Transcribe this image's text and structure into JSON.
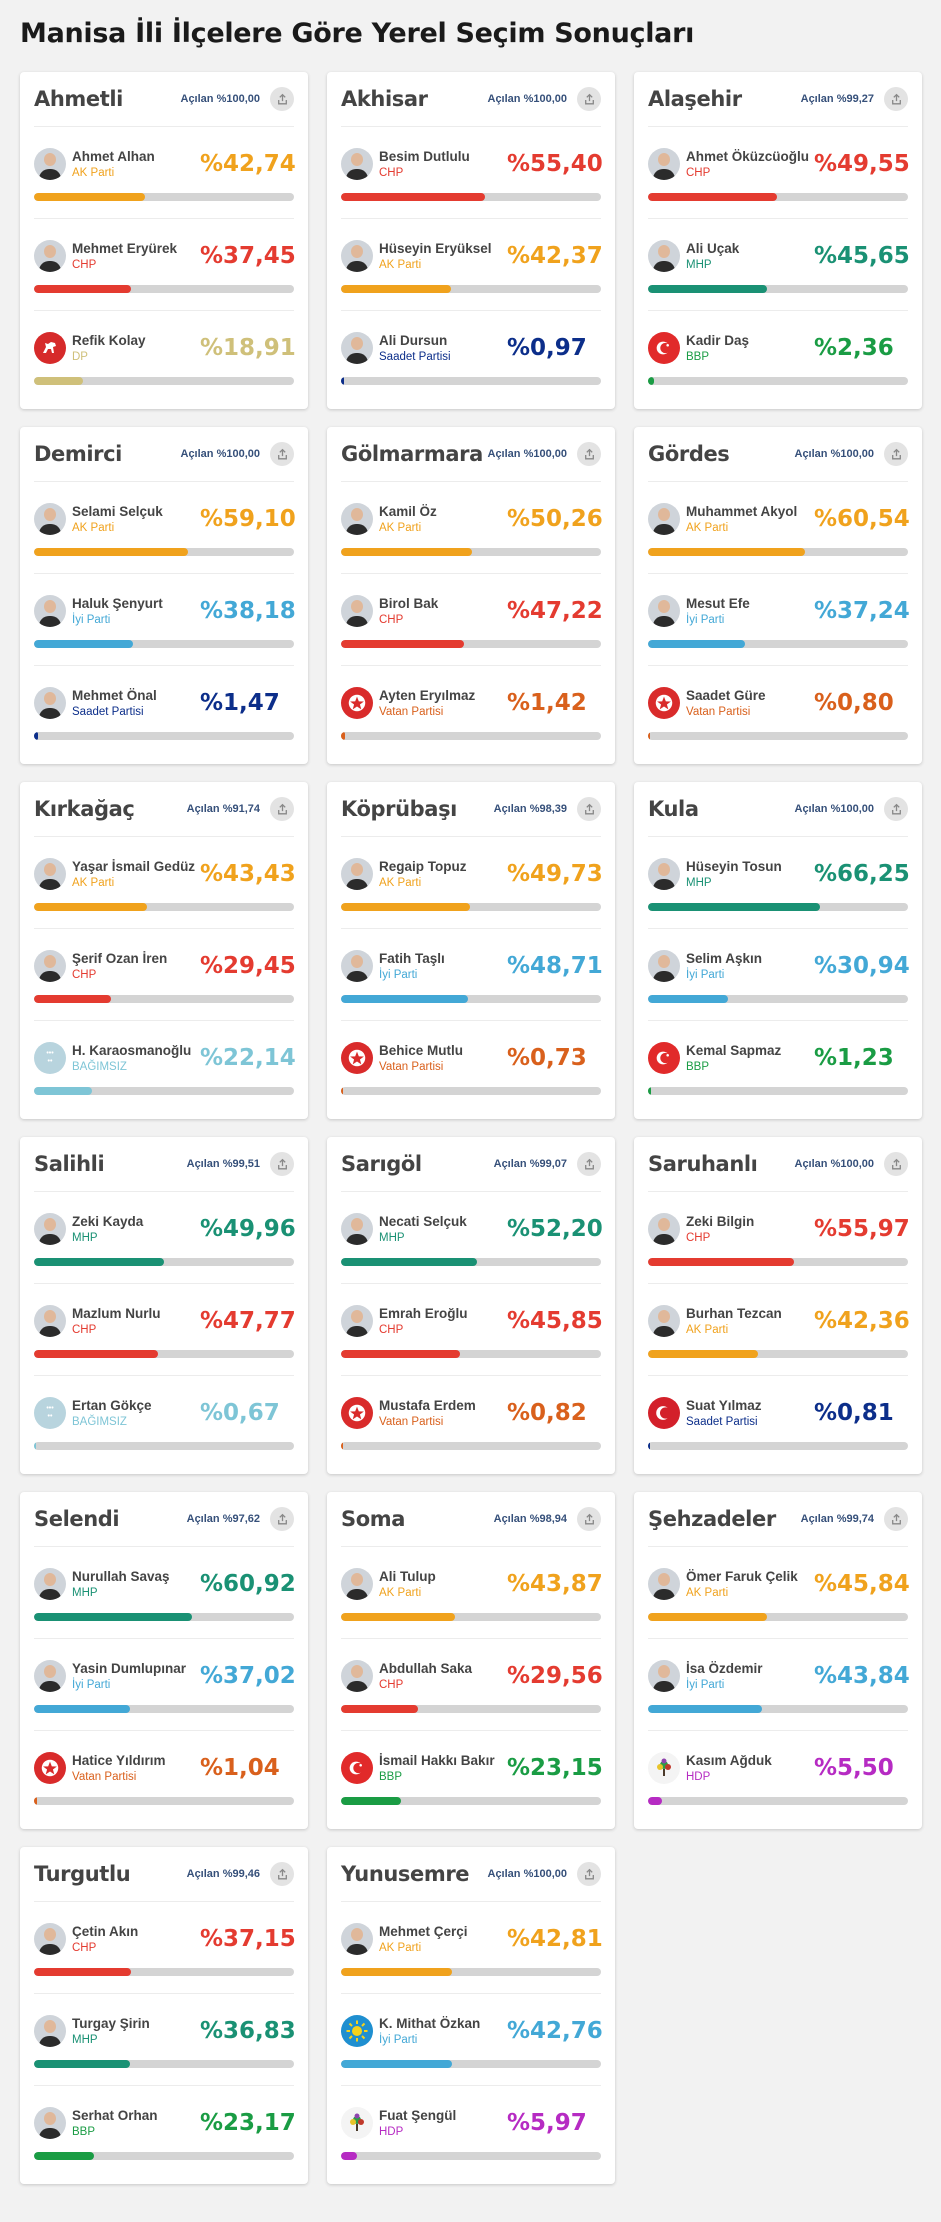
{
  "title": "Manisa İli İlçelere Göre Yerel Seçim Sonuçları",
  "colors": {
    "AK Parti": "#f0a21d",
    "CHP": "#e43b30",
    "MHP": "#1a9174",
    "DP": "#cfc07a",
    "İyi Parti": "#43a8d6",
    "Saadet Partisi": "#0c2e8a",
    "Vatan Partisi": "#d9601c",
    "BBP": "#1a9c44",
    "BAĞIMSIZ": "#7ec5d6",
    "HDP": "#b62bc3"
  },
  "districts": [
    {
      "name": "Ahmetli",
      "opened": "Açılan %100,00",
      "candidates": [
        {
          "name": "Ahmet Alhan",
          "party": "AK Parti",
          "pct": "%42,74",
          "value": 42.74,
          "avatar": "photo"
        },
        {
          "name": "Mehmet Eryürek",
          "party": "CHP",
          "pct": "%37,45",
          "value": 37.45,
          "avatar": "photo"
        },
        {
          "name": "Refik Kolay",
          "party": "DP",
          "pct": "%18,91",
          "value": 18.91,
          "avatar": "horse-logo-icon"
        }
      ]
    },
    {
      "name": "Akhisar",
      "opened": "Açılan %100,00",
      "candidates": [
        {
          "name": "Besim Dutlulu",
          "party": "CHP",
          "pct": "%55,40",
          "value": 55.4,
          "avatar": "photo"
        },
        {
          "name": "Hüseyin Eryüksel",
          "party": "AK Parti",
          "pct": "%42,37",
          "value": 42.37,
          "avatar": "photo"
        },
        {
          "name": "Ali Dursun",
          "party": "Saadet Partisi",
          "pct": "%0,97",
          "value": 0.97,
          "avatar": "photo"
        }
      ]
    },
    {
      "name": "Alaşehir",
      "opened": "Açılan %99,27",
      "candidates": [
        {
          "name": "Ahmet Öküzcüoğlu",
          "party": "CHP",
          "pct": "%49,55",
          "value": 49.55,
          "avatar": "photo"
        },
        {
          "name": "Ali Uçak",
          "party": "MHP",
          "pct": "%45,65",
          "value": 45.65,
          "avatar": "photo"
        },
        {
          "name": "Kadir Daş",
          "party": "BBP",
          "pct": "%2,36",
          "value": 2.36,
          "avatar": "crescent-logo-icon"
        }
      ]
    },
    {
      "name": "Demirci",
      "opened": "Açılan %100,00",
      "candidates": [
        {
          "name": "Selami Selçuk",
          "party": "AK Parti",
          "pct": "%59,10",
          "value": 59.1,
          "avatar": "photo"
        },
        {
          "name": "Haluk Şenyurt",
          "party": "İyi Parti",
          "pct": "%38,18",
          "value": 38.18,
          "avatar": "photo"
        },
        {
          "name": "Mehmet Önal",
          "party": "Saadet Partisi",
          "pct": "%1,47",
          "value": 1.47,
          "avatar": "photo"
        }
      ]
    },
    {
      "name": "Gölmarmara",
      "opened": "Açılan %100,00",
      "candidates": [
        {
          "name": "Kamil Öz",
          "party": "AK Parti",
          "pct": "%50,26",
          "value": 50.26,
          "avatar": "photo"
        },
        {
          "name": "Birol Bak",
          "party": "CHP",
          "pct": "%47,22",
          "value": 47.22,
          "avatar": "photo"
        },
        {
          "name": "Ayten Eryılmaz",
          "party": "Vatan Partisi",
          "pct": "%1,42",
          "value": 1.42,
          "avatar": "star-logo-icon"
        }
      ]
    },
    {
      "name": "Gördes",
      "opened": "Açılan %100,00",
      "candidates": [
        {
          "name": "Muhammet Akyol",
          "party": "AK Parti",
          "pct": "%60,54",
          "value": 60.54,
          "avatar": "photo"
        },
        {
          "name": "Mesut Efe",
          "party": "İyi Parti",
          "pct": "%37,24",
          "value": 37.24,
          "avatar": "photo"
        },
        {
          "name": "Saadet Güre",
          "party": "Vatan Partisi",
          "pct": "%0,80",
          "value": 0.8,
          "avatar": "star-logo-icon"
        }
      ]
    },
    {
      "name": "Kırkağaç",
      "opened": "Açılan %91,74",
      "candidates": [
        {
          "name": "Yaşar İsmail Gedüz",
          "party": "AK Parti",
          "pct": "%43,43",
          "value": 43.43,
          "avatar": "photo"
        },
        {
          "name": "Şerif Ozan İren",
          "party": "CHP",
          "pct": "%29,45",
          "value": 29.45,
          "avatar": "photo"
        },
        {
          "name": "H. Karaosmanoğlu",
          "party": "BAĞIMSIZ",
          "pct": "%22,14",
          "value": 22.14,
          "avatar": "independent-logo-icon"
        }
      ]
    },
    {
      "name": "Köprübaşı",
      "opened": "Açılan %98,39",
      "candidates": [
        {
          "name": "Regaip Topuz",
          "party": "AK Parti",
          "pct": "%49,73",
          "value": 49.73,
          "avatar": "photo"
        },
        {
          "name": "Fatih Taşlı",
          "party": "İyi Parti",
          "pct": "%48,71",
          "value": 48.71,
          "avatar": "photo"
        },
        {
          "name": "Behice Mutlu",
          "party": "Vatan Partisi",
          "pct": "%0,73",
          "value": 0.73,
          "avatar": "star-logo-icon"
        }
      ]
    },
    {
      "name": "Kula",
      "opened": "Açılan %100,00",
      "candidates": [
        {
          "name": "Hüseyin Tosun",
          "party": "MHP",
          "pct": "%66,25",
          "value": 66.25,
          "avatar": "photo"
        },
        {
          "name": "Selim Aşkın",
          "party": "İyi Parti",
          "pct": "%30,94",
          "value": 30.94,
          "avatar": "photo"
        },
        {
          "name": "Kemal Sapmaz",
          "party": "BBP",
          "pct": "%1,23",
          "value": 1.23,
          "avatar": "crescent-logo-icon"
        }
      ]
    },
    {
      "name": "Salihli",
      "opened": "Açılan %99,51",
      "candidates": [
        {
          "name": "Zeki Kayda",
          "party": "MHP",
          "pct": "%49,96",
          "value": 49.96,
          "avatar": "photo"
        },
        {
          "name": "Mazlum Nurlu",
          "party": "CHP",
          "pct": "%47,77",
          "value": 47.77,
          "avatar": "photo"
        },
        {
          "name": "Ertan Gökçe",
          "party": "BAĞIMSIZ",
          "pct": "%0,67",
          "value": 0.67,
          "avatar": "independent-logo-icon"
        }
      ]
    },
    {
      "name": "Sarıgöl",
      "opened": "Açılan %99,07",
      "candidates": [
        {
          "name": "Necati Selçuk",
          "party": "MHP",
          "pct": "%52,20",
          "value": 52.2,
          "avatar": "photo"
        },
        {
          "name": "Emrah Eroğlu",
          "party": "CHP",
          "pct": "%45,85",
          "value": 45.85,
          "avatar": "photo"
        },
        {
          "name": "Mustafa Erdem",
          "party": "Vatan Partisi",
          "pct": "%0,82",
          "value": 0.82,
          "avatar": "star-logo-icon"
        }
      ]
    },
    {
      "name": "Saruhanlı",
      "opened": "Açılan %100,00",
      "candidates": [
        {
          "name": "Zeki Bilgin",
          "party": "CHP",
          "pct": "%55,97",
          "value": 55.97,
          "avatar": "photo"
        },
        {
          "name": "Burhan Tezcan",
          "party": "AK Parti",
          "pct": "%42,36",
          "value": 42.36,
          "avatar": "photo"
        },
        {
          "name": "Suat Yılmaz",
          "party": "Saadet Partisi",
          "pct": "%0,81",
          "value": 0.81,
          "avatar": "saadet-logo-icon"
        }
      ]
    },
    {
      "name": "Selendi",
      "opened": "Açılan %97,62",
      "candidates": [
        {
          "name": "Nurullah Savaş",
          "party": "MHP",
          "pct": "%60,92",
          "value": 60.92,
          "avatar": "photo"
        },
        {
          "name": "Yasin Dumlupınar",
          "party": "İyi Parti",
          "pct": "%37,02",
          "value": 37.02,
          "avatar": "photo"
        },
        {
          "name": "Hatice Yıldırım",
          "party": "Vatan Partisi",
          "pct": "%1,04",
          "value": 1.04,
          "avatar": "star-logo-icon"
        }
      ]
    },
    {
      "name": "Soma",
      "opened": "Açılan %98,94",
      "candidates": [
        {
          "name": "Ali Tulup",
          "party": "AK Parti",
          "pct": "%43,87",
          "value": 43.87,
          "avatar": "photo"
        },
        {
          "name": "Abdullah Saka",
          "party": "CHP",
          "pct": "%29,56",
          "value": 29.56,
          "avatar": "photo"
        },
        {
          "name": "İsmail Hakkı Bakır",
          "party": "BBP",
          "pct": "%23,15",
          "value": 23.15,
          "avatar": "crescent-logo-icon"
        }
      ]
    },
    {
      "name": "Şehzadeler",
      "opened": "Açılan %99,74",
      "candidates": [
        {
          "name": "Ömer Faruk Çelik",
          "party": "AK Parti",
          "pct": "%45,84",
          "value": 45.84,
          "avatar": "photo"
        },
        {
          "name": "İsa Özdemir",
          "party": "İyi Parti",
          "pct": "%43,84",
          "value": 43.84,
          "avatar": "photo"
        },
        {
          "name": "Kasım Ağduk",
          "party": "HDP",
          "pct": "%5,50",
          "value": 5.5,
          "avatar": "tree-logo-icon"
        }
      ]
    },
    {
      "name": "Turgutlu",
      "opened": "Açılan %99,46",
      "candidates": [
        {
          "name": "Çetin Akın",
          "party": "CHP",
          "pct": "%37,15",
          "value": 37.15,
          "avatar": "photo"
        },
        {
          "name": "Turgay Şirin",
          "party": "MHP",
          "pct": "%36,83",
          "value": 36.83,
          "avatar": "photo"
        },
        {
          "name": "Serhat Orhan",
          "party": "BBP",
          "pct": "%23,17",
          "value": 23.17,
          "avatar": "photo"
        }
      ]
    },
    {
      "name": "Yunusemre",
      "opened": "Açılan %100,00",
      "candidates": [
        {
          "name": "Mehmet Çerçi",
          "party": "AK Parti",
          "pct": "%42,81",
          "value": 42.81,
          "avatar": "photo"
        },
        {
          "name": "K. Mithat Özkan",
          "party": "İyi Parti",
          "pct": "%42,76",
          "value": 42.76,
          "avatar": "sun-logo-icon"
        },
        {
          "name": "Fuat Şengül",
          "party": "HDP",
          "pct": "%5,97",
          "value": 5.97,
          "avatar": "tree-logo-icon"
        }
      ]
    }
  ]
}
